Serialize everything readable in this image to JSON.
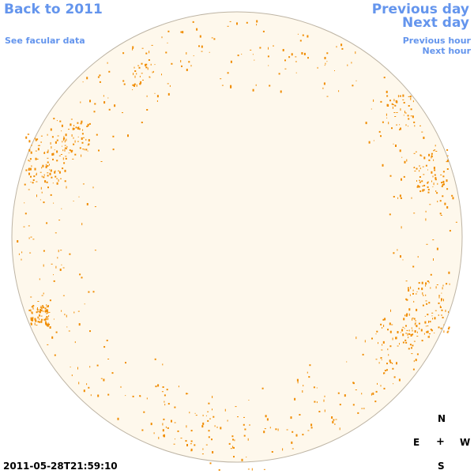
{
  "nav": {
    "back": "Back to 2011",
    "facular": "See facular data",
    "previous_day": "Previous day",
    "next_day": "Next day",
    "previous_hour": "Previous hour",
    "next_hour": "Next hour"
  },
  "compass": {
    "north": "N",
    "east": "E",
    "center": "+",
    "west": "W",
    "south": "S"
  },
  "timestamp": "2011-05-28T21:59:10",
  "colors": {
    "disk_fill": "#fef8ec",
    "disk_outline": "#bdb4a4",
    "facula": "#f08c00",
    "link": "#6495ed"
  }
}
